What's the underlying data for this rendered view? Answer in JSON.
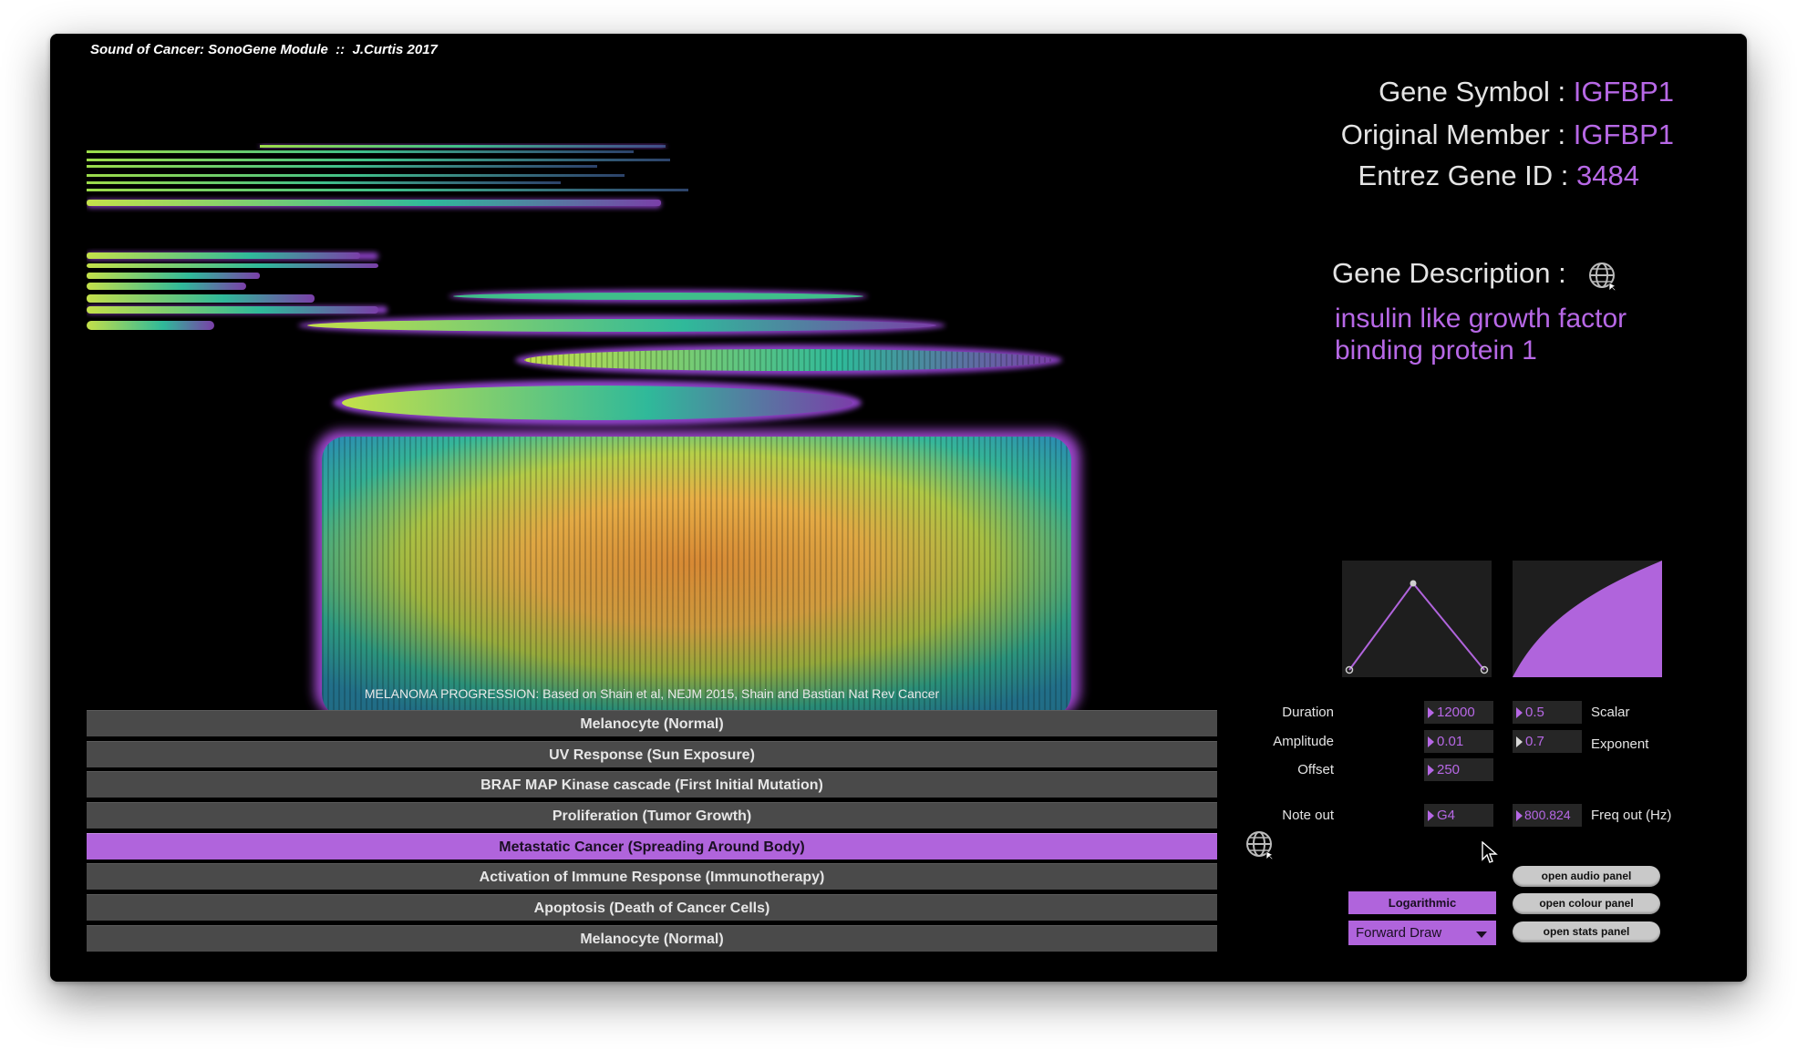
{
  "app": {
    "title": "Sound of Cancer: SonoGene Module  ::  J.Curtis 2017"
  },
  "viz": {
    "caption": "MELANOMA PROGRESSION: Based on Shain et al, NEJM 2015, Shain and Bastian Nat Rev Cancer"
  },
  "stages": [
    {
      "label": "Melanocyte (Normal)",
      "selected": false
    },
    {
      "label": "UV Response (Sun Exposure)",
      "selected": false
    },
    {
      "label": "BRAF MAP Kinase cascade (First Initial Mutation)",
      "selected": false
    },
    {
      "label": "Proliferation (Tumor Growth)",
      "selected": false
    },
    {
      "label": "Metastatic Cancer (Spreading Around Body)",
      "selected": true
    },
    {
      "label": "Activation of Immune Response (Immunotherapy)",
      "selected": false
    },
    {
      "label": "Apoptosis (Death of Cancer Cells)",
      "selected": false
    },
    {
      "label": "Melanocyte (Normal)",
      "selected": false
    }
  ],
  "gene": {
    "symbol_label": "Gene Symbol :",
    "symbol_value": "IGFBP1",
    "member_label": "Original Member :",
    "member_value": "IGFBP1",
    "entrez_label": "Entrez Gene ID :",
    "entrez_value": "3484",
    "description_label": "Gene Description :",
    "description_text": "insulin like growth factor binding protein 1"
  },
  "params": {
    "duration_label": "Duration",
    "duration_value": "12000",
    "amplitude_label": "Amplitude",
    "amplitude_value": "0.01",
    "offset_label": "Offset",
    "offset_value": "250",
    "note_label": "Note out",
    "note_value": "G4",
    "scalar_label": "Scalar",
    "scalar_value": "0.5",
    "exponent_label": "Exponent",
    "exponent_value": "0.7",
    "freq_label": "Freq out (Hz)",
    "freq_value": "800.824"
  },
  "controls": {
    "scale_mode": "Logarithmic",
    "draw_mode": "Forward Draw",
    "open_audio": "open audio panel",
    "open_colour": "open colour panel",
    "open_stats": "open stats panel"
  },
  "colors": {
    "accent": "#b064dc",
    "accent_text": "#b768e6",
    "bar": "#4a4a4a"
  },
  "icons": [
    "globe-icon",
    "envelope-graph",
    "exponent-curve",
    "mouse-pointer-icon"
  ]
}
